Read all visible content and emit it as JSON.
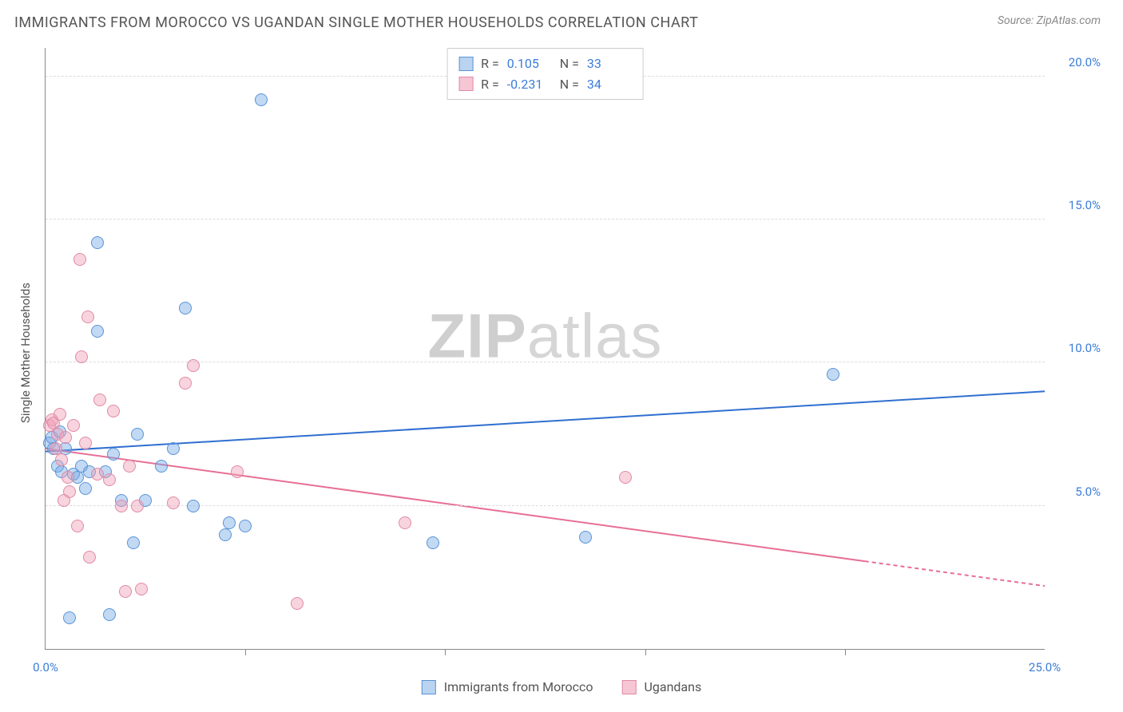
{
  "title": "IMMIGRANTS FROM MOROCCO VS UGANDAN SINGLE MOTHER HOUSEHOLDS CORRELATION CHART",
  "source_label": "Source: ZipAtlas.com",
  "ylabel": "Single Mother Households",
  "watermark_bold": "ZIP",
  "watermark_light": "atlas",
  "chart": {
    "type": "scatter",
    "xlim": [
      0,
      25
    ],
    "ylim": [
      0,
      21
    ],
    "background_color": "#ffffff",
    "grid_color": "#dddddd",
    "axis_color": "#888888",
    "y_ticks": [
      {
        "v": 5,
        "label": "5.0%"
      },
      {
        "v": 10,
        "label": "10.0%"
      },
      {
        "v": 15,
        "label": "15.0%"
      },
      {
        "v": 20,
        "label": "20.0%"
      }
    ],
    "x_ticks_minor": [
      5,
      10,
      15,
      20
    ],
    "x_ticks_labeled": [
      {
        "v": 0,
        "label": "0.0%"
      },
      {
        "v": 25,
        "label": "25.0%"
      }
    ],
    "ytick_color": "#3b7dd8",
    "xtick_color": "#3b7dd8",
    "point_radius": 8,
    "point_border_width": 1.5,
    "series": [
      {
        "key": "morocco",
        "label": "Immigrants from Morocco",
        "fill": "rgba(120,170,230,0.45)",
        "stroke": "#5a93d6",
        "legend_fill": "#b9d3f0",
        "legend_stroke": "#5a93d6",
        "R": "0.105",
        "N": "33",
        "R_color": "#3b7dd8",
        "trend": {
          "x1": 0,
          "y1": 6.9,
          "x2": 25,
          "y2": 9.0,
          "color": "#2f6fd0",
          "width": 2,
          "dash_after_x": 25
        },
        "points": [
          [
            0.1,
            7.2
          ],
          [
            0.15,
            7.4
          ],
          [
            0.2,
            7.0
          ],
          [
            0.3,
            6.4
          ],
          [
            0.35,
            7.6
          ],
          [
            0.4,
            6.2
          ],
          [
            0.5,
            7.0
          ],
          [
            0.7,
            6.1
          ],
          [
            0.8,
            6.0
          ],
          [
            0.9,
            6.4
          ],
          [
            1.0,
            5.6
          ],
          [
            1.1,
            6.2
          ],
          [
            1.3,
            14.2
          ],
          [
            1.3,
            11.1
          ],
          [
            1.5,
            6.2
          ],
          [
            1.6,
            1.2
          ],
          [
            1.7,
            6.8
          ],
          [
            1.9,
            5.2
          ],
          [
            2.2,
            3.7
          ],
          [
            2.3,
            7.5
          ],
          [
            2.5,
            5.2
          ],
          [
            2.9,
            6.4
          ],
          [
            3.2,
            7.0
          ],
          [
            3.5,
            11.9
          ],
          [
            3.7,
            5.0
          ],
          [
            4.5,
            4.0
          ],
          [
            4.6,
            4.4
          ],
          [
            5.0,
            4.3
          ],
          [
            5.4,
            19.2
          ],
          [
            9.7,
            3.7
          ],
          [
            13.5,
            3.9
          ],
          [
            19.7,
            9.6
          ],
          [
            0.6,
            1.1
          ]
        ]
      },
      {
        "key": "ugandans",
        "label": "Ugandans",
        "fill": "rgba(240,160,185,0.45)",
        "stroke": "#e08aa5",
        "legend_fill": "#f6c6d5",
        "legend_stroke": "#e08aa5",
        "R": "-0.231",
        "N": "34",
        "R_color": "#3b7dd8",
        "trend": {
          "x1": 0,
          "y1": 7.0,
          "x2": 25,
          "y2": 2.2,
          "color": "#e76f94",
          "width": 2,
          "dash_after_x": 20.5
        },
        "points": [
          [
            0.1,
            7.8
          ],
          [
            0.15,
            8.0
          ],
          [
            0.2,
            7.9
          ],
          [
            0.25,
            7.0
          ],
          [
            0.3,
            7.5
          ],
          [
            0.35,
            8.2
          ],
          [
            0.4,
            6.6
          ],
          [
            0.5,
            7.4
          ],
          [
            0.55,
            6.0
          ],
          [
            0.6,
            5.5
          ],
          [
            0.7,
            7.8
          ],
          [
            0.8,
            4.3
          ],
          [
            0.85,
            13.6
          ],
          [
            0.9,
            10.2
          ],
          [
            1.0,
            7.2
          ],
          [
            1.05,
            11.6
          ],
          [
            1.1,
            3.2
          ],
          [
            1.3,
            6.1
          ],
          [
            1.35,
            8.7
          ],
          [
            1.6,
            5.9
          ],
          [
            1.7,
            8.3
          ],
          [
            1.9,
            5.0
          ],
          [
            2.0,
            2.0
          ],
          [
            2.1,
            6.4
          ],
          [
            2.3,
            5.0
          ],
          [
            2.4,
            2.1
          ],
          [
            3.2,
            5.1
          ],
          [
            3.5,
            9.3
          ],
          [
            3.7,
            9.9
          ],
          [
            4.8,
            6.2
          ],
          [
            6.3,
            1.6
          ],
          [
            9.0,
            4.4
          ],
          [
            14.5,
            6.0
          ],
          [
            0.45,
            5.2
          ]
        ]
      }
    ]
  },
  "legend_top_labels": {
    "R": "R =",
    "N": "N ="
  }
}
